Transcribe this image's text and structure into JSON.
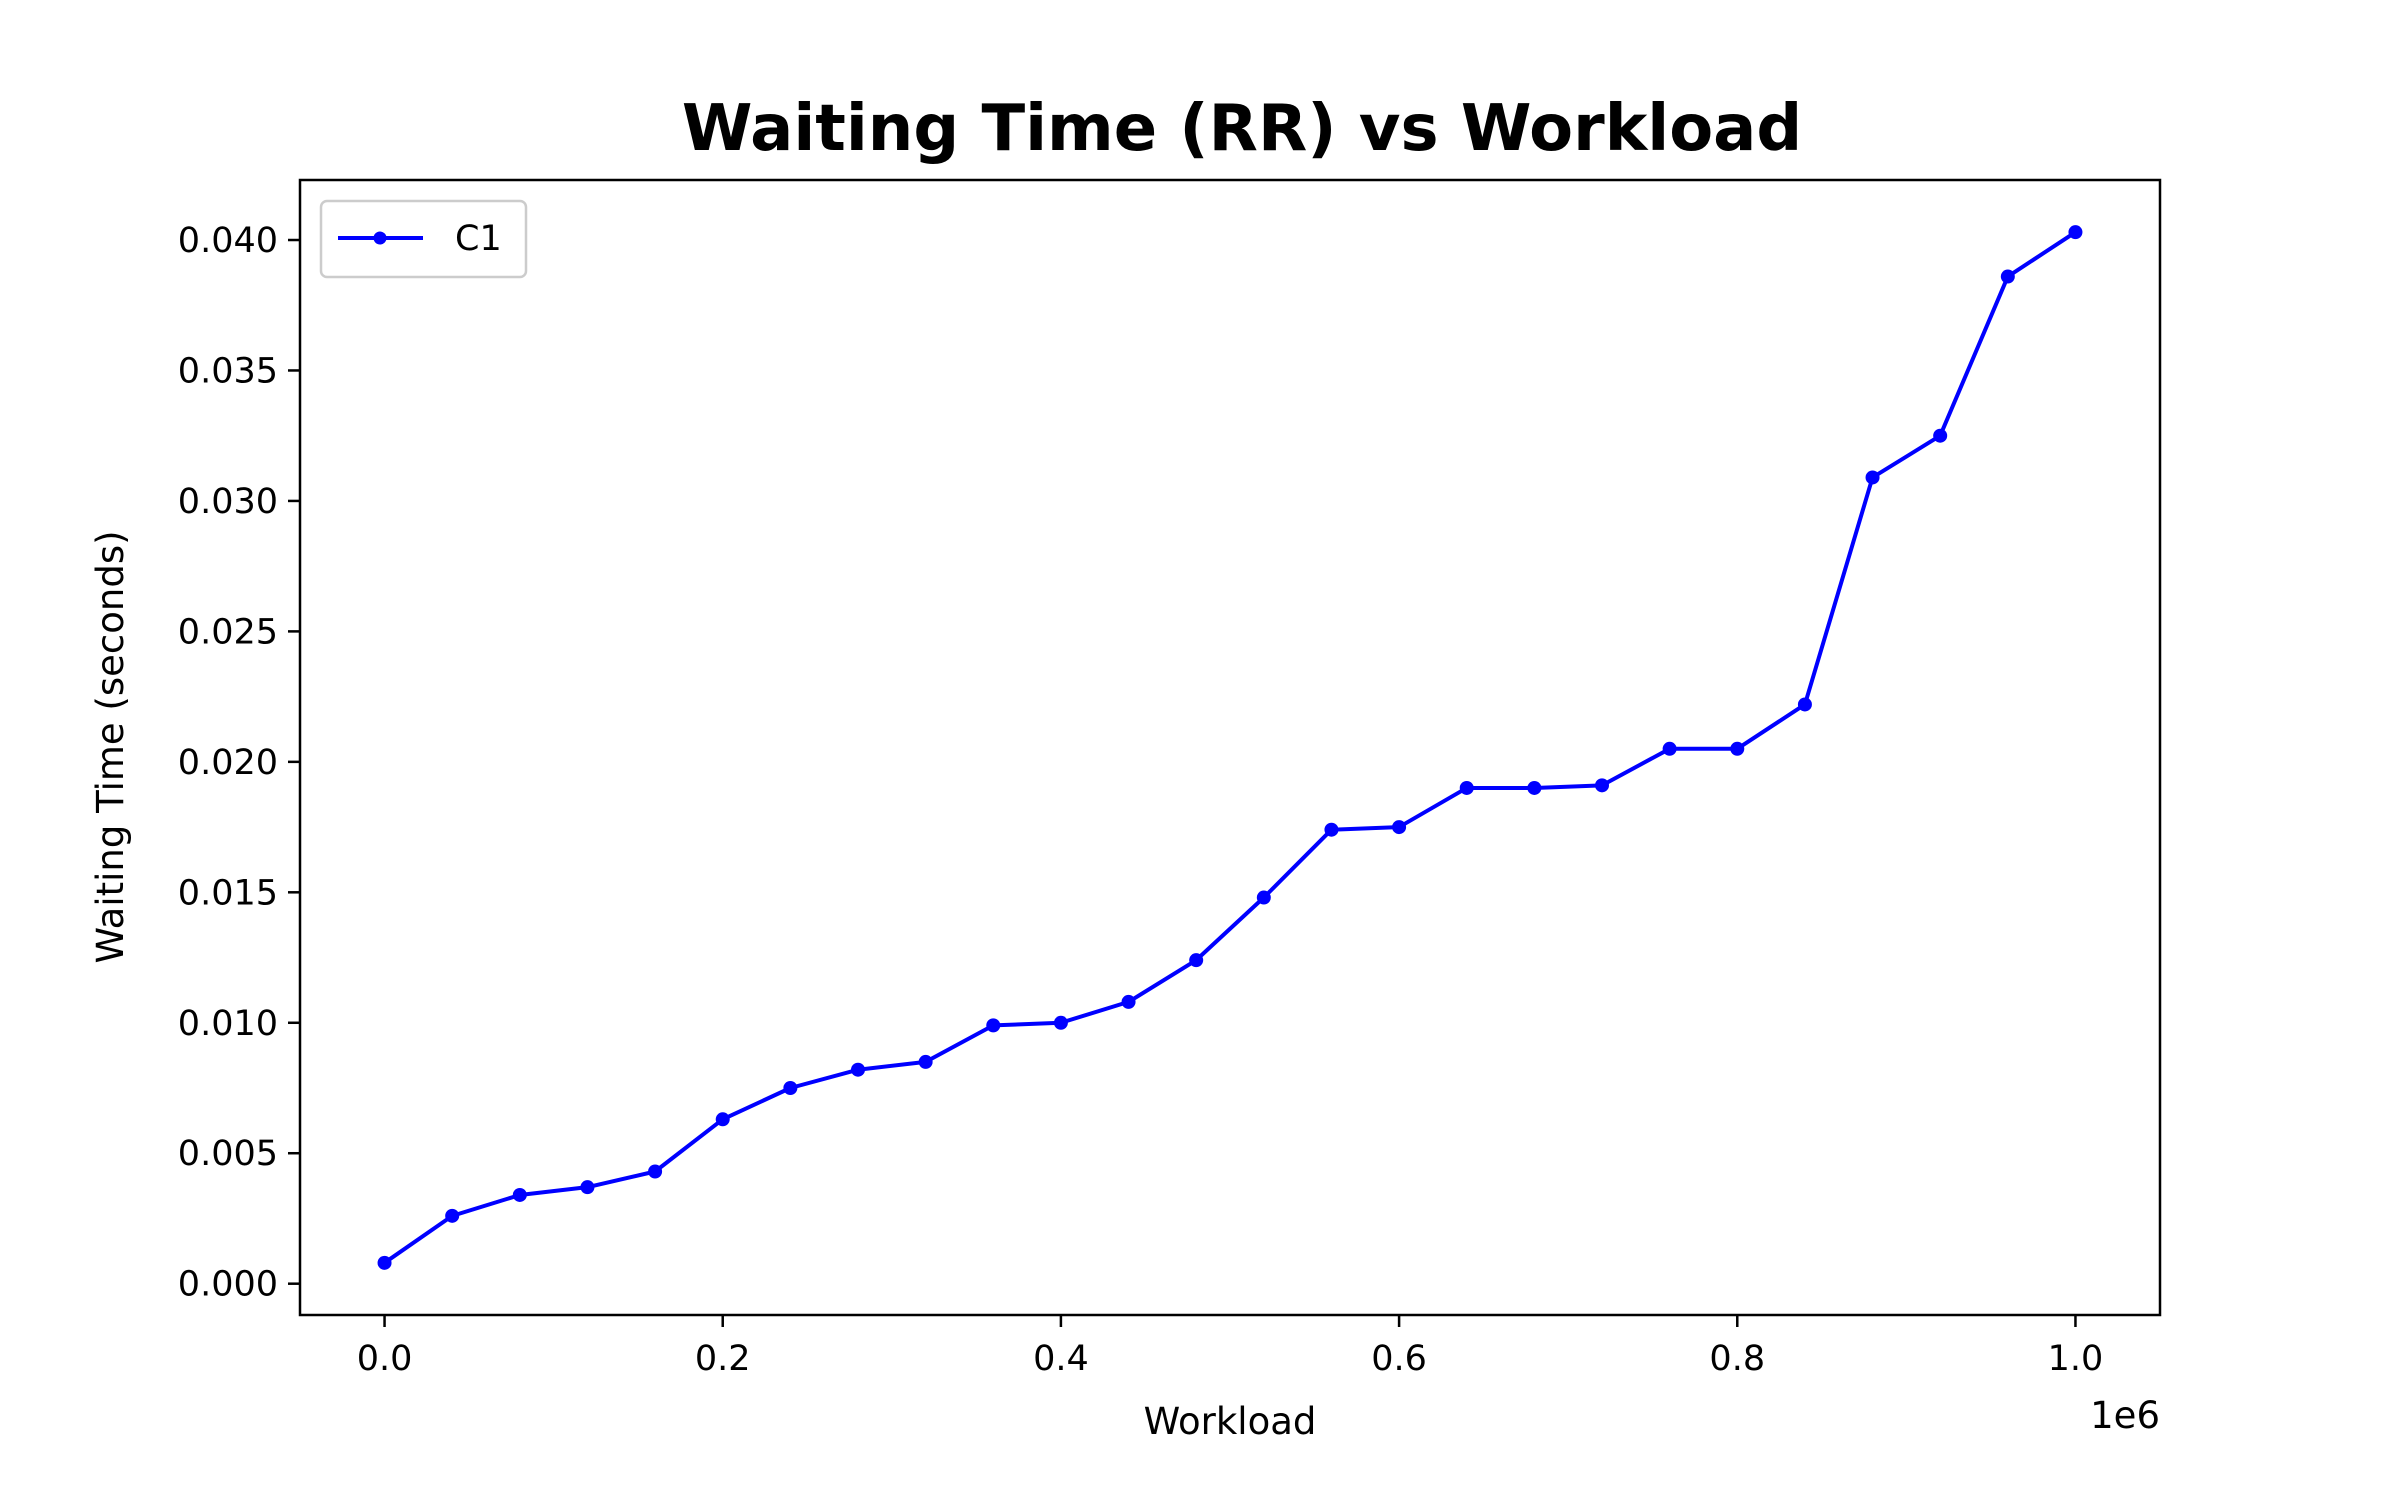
{
  "chart_data": {
    "type": "line",
    "title": "Waiting Time (RR) vs Workload",
    "xlabel": "Workload",
    "ylabel": "Waiting Time (seconds)",
    "x_offset_text": "1e6",
    "x_scale": 1000000,
    "xlim": [
      -50000,
      1050000
    ],
    "ylim": [
      -0.0012,
      0.0423
    ],
    "x_ticks": [
      0.0,
      0.2,
      0.4,
      0.6,
      0.8,
      1.0
    ],
    "x_tick_labels": [
      "0.0",
      "0.2",
      "0.4",
      "0.6",
      "0.8",
      "1.0"
    ],
    "y_ticks": [
      0.0,
      0.005,
      0.01,
      0.015,
      0.02,
      0.025,
      0.03,
      0.035,
      0.04
    ],
    "y_tick_labels": [
      "0.000",
      "0.005",
      "0.010",
      "0.015",
      "0.020",
      "0.025",
      "0.030",
      "0.035",
      "0.040"
    ],
    "grid": false,
    "legend_position": "top-left",
    "series": [
      {
        "name": "C1",
        "color": "#0000ff",
        "marker": "circle",
        "x": [
          0,
          40000,
          80000,
          120000,
          160000,
          200000,
          240000,
          280000,
          320000,
          360000,
          400000,
          440000,
          480000,
          520000,
          560000,
          600000,
          640000,
          680000,
          720000,
          760000,
          800000,
          840000,
          880000,
          920000,
          960000,
          1000000
        ],
        "values": [
          0.0008,
          0.0026,
          0.0034,
          0.0037,
          0.0043,
          0.0063,
          0.0075,
          0.0082,
          0.0085,
          0.0099,
          0.01,
          0.0108,
          0.0124,
          0.0148,
          0.0174,
          0.0175,
          0.019,
          0.019,
          0.0191,
          0.0205,
          0.0205,
          0.0222,
          0.0309,
          0.0325,
          0.0386,
          0.0403
        ]
      }
    ]
  }
}
